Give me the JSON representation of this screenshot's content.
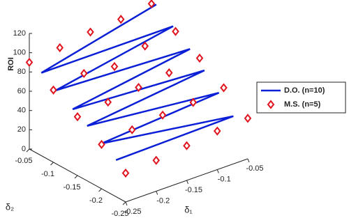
{
  "chart_data": {
    "type": "3d",
    "xlabel": "δ₁",
    "ylabel": "δ₂",
    "zlabel": "ROI",
    "xlim": [
      -0.25,
      -0.05
    ],
    "ylim": [
      -0.25,
      -0.05
    ],
    "zlim": [
      0,
      120
    ],
    "xticks": [
      -0.25,
      -0.2,
      -0.15,
      -0.1,
      -0.05
    ],
    "yticks": [
      -0.25,
      -0.2,
      -0.15,
      -0.1,
      -0.05
    ],
    "zticks": [
      0,
      20,
      40,
      60,
      80,
      100,
      120
    ],
    "legend": "right",
    "series": [
      {
        "name": "D.O. (n=10)",
        "mode": "line",
        "color": "#0a1fd6",
        "x": [
          -0.05,
          -0.25,
          -0.05,
          -0.25,
          -0.05,
          -0.25,
          -0.05,
          -0.25,
          -0.05,
          -0.25,
          -0.05,
          -0.25
        ],
        "y": [
          -0.06,
          -0.075,
          -0.095,
          -0.105,
          -0.13,
          -0.14,
          -0.16,
          -0.17,
          -0.19,
          -0.2,
          -0.22,
          -0.23
        ],
        "z": [
          108,
          86,
          95,
          76,
          81,
          66,
          67,
          57,
          52,
          47,
          36,
          38
        ]
      },
      {
        "name": "M.S. (n=5)",
        "mode": "markers",
        "color": "#e0141e",
        "x": [
          -0.25,
          -0.25,
          -0.25,
          -0.25,
          -0.25,
          -0.2,
          -0.2,
          -0.2,
          -0.2,
          -0.2,
          -0.15,
          -0.15,
          -0.15,
          -0.15,
          -0.15,
          -0.1,
          -0.1,
          -0.1,
          -0.1,
          -0.1,
          -0.05,
          -0.05,
          -0.05,
          -0.05,
          -0.05
        ],
        "y": [
          -0.25,
          -0.2,
          -0.15,
          -0.1,
          -0.05,
          -0.25,
          -0.2,
          -0.15,
          -0.1,
          -0.05,
          -0.25,
          -0.2,
          -0.15,
          -0.1,
          -0.05,
          -0.25,
          -0.2,
          -0.15,
          -0.1,
          -0.05,
          -0.25,
          -0.2,
          -0.15,
          -0.1,
          -0.05
        ],
        "z": [
          30,
          46,
          61,
          75,
          90,
          32,
          50,
          65,
          81,
          94,
          36,
          54,
          69,
          77,
          99,
          40,
          56,
          73,
          87,
          101,
          42,
          60,
          77,
          91,
          106
        ]
      }
    ]
  }
}
